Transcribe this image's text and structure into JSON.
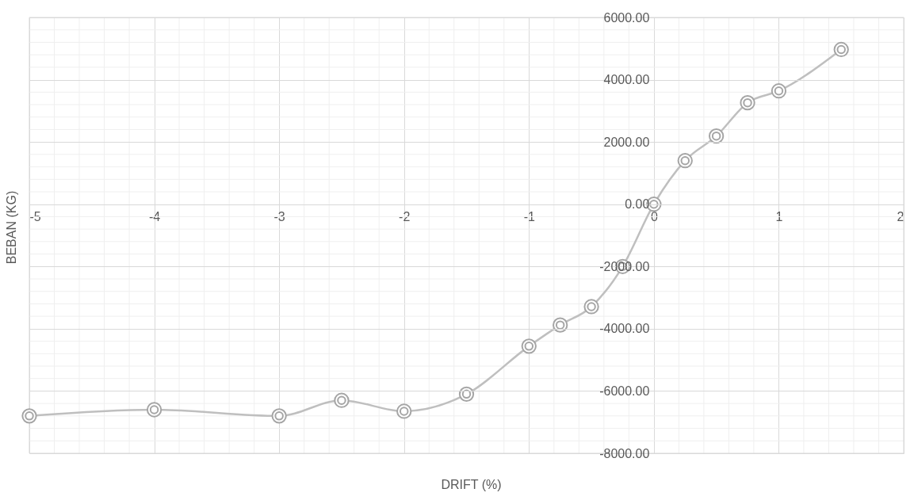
{
  "chart_data": {
    "type": "line",
    "xlabel": "DRIFT (%)",
    "ylabel": "BEBAN (KG)",
    "x": [
      -5,
      -4,
      -3,
      -2.5,
      -2,
      -1.5,
      -1,
      -0.75,
      -0.5,
      -0.25,
      0,
      0.25,
      0.5,
      0.75,
      1,
      1.5
    ],
    "series": [
      {
        "color": "#bfbfbf",
        "values": [
          -6800,
          -6600,
          -6800,
          -6300,
          -6650,
          -6100,
          -4560,
          -3880,
          -3290,
          -2000,
          0,
          1400,
          2190,
          3260,
          3640,
          4970
        ]
      }
    ],
    "xlim": [
      -5,
      2
    ],
    "xticks": [
      -5,
      -4,
      -3,
      -2,
      -1,
      0,
      1,
      2
    ],
    "ylim": [
      -8000,
      6000
    ],
    "yticks": [
      {
        "value": -8000,
        "label": "-8000.00"
      },
      {
        "value": -6000,
        "label": "-6000.00"
      },
      {
        "value": -4000,
        "label": "-4000.00"
      },
      {
        "value": -2000,
        "label": "-2000.00"
      },
      {
        "value": 0,
        "label": "0.00"
      },
      {
        "value": 2000,
        "label": "2000.00"
      },
      {
        "value": 4000,
        "label": "4000.00"
      },
      {
        "value": 6000,
        "label": "6000.00"
      }
    ],
    "grid": true,
    "marker": "circle",
    "line_style": "solid"
  }
}
